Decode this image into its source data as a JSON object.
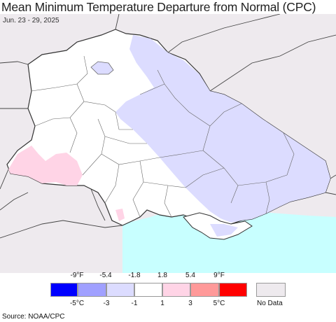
{
  "title": "Mean Minimum Temperature Departure from Normal (CPC)",
  "date_range": "Jun. 23 - 29, 2025",
  "source": "Source: NOAA/CPC",
  "colors": {
    "outside": "#eeeaee",
    "land_near_normal": "#ffffff",
    "below_1_3C": "#dcdcff",
    "above_1_3C": "#ffd4e6",
    "sea": "#c8ffff",
    "border": "#666666"
  },
  "legend": {
    "fahrenheit_labels": [
      "-9°F",
      "-5.4",
      "-1.8",
      "1.8",
      "5.4",
      "9°F"
    ],
    "celsius_labels": [
      "-5°C",
      "-3",
      "-1",
      "1",
      "3",
      "5°C"
    ],
    "swatches": [
      {
        "name": "much-below",
        "color": "#0000ff"
      },
      {
        "name": "below",
        "color": "#a0a0ff"
      },
      {
        "name": "slightly-below",
        "color": "#dcdcff"
      },
      {
        "name": "near-normal",
        "color": "#ffffff"
      },
      {
        "name": "slightly-above",
        "color": "#ffd4e6"
      },
      {
        "name": "above",
        "color": "#ff9999"
      },
      {
        "name": "much-above",
        "color": "#ff0000"
      }
    ],
    "no_data": {
      "label": "No Data",
      "color": "#eeeaee"
    }
  }
}
